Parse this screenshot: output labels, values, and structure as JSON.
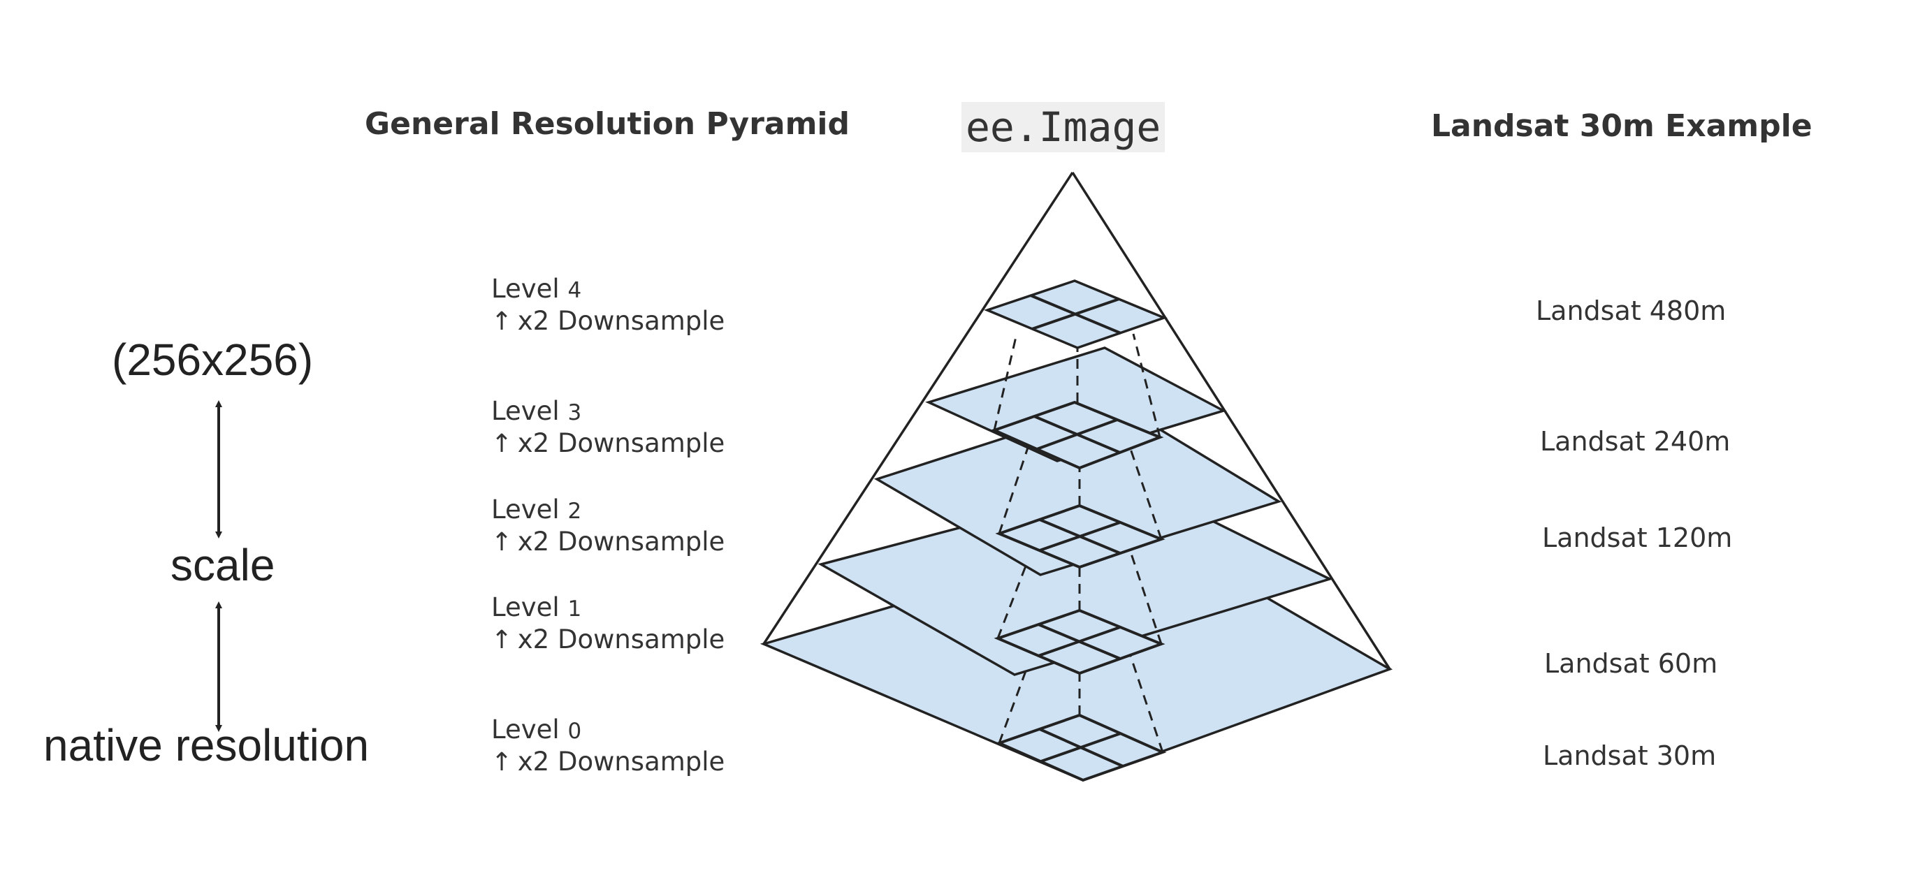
{
  "headings": {
    "left": "General Resolution Pyramid",
    "center": "ee.Image",
    "right": "Landsat 30m Example"
  },
  "left_axis": {
    "top": "(256x256)",
    "middle": "scale",
    "bottom": "native resolution"
  },
  "levels": [
    {
      "label": "Level",
      "number": "4",
      "arrow": "↑",
      "note": "x2 Downsample",
      "landsat": "Landsat 480m"
    },
    {
      "label": "Level",
      "number": "3",
      "arrow": "↑",
      "note": "x2 Downsample",
      "landsat": "Landsat 240m"
    },
    {
      "label": "Level",
      "number": "2",
      "arrow": "↑",
      "note": "x2 Downsample",
      "landsat": "Landsat 120m"
    },
    {
      "label": "Level",
      "number": "1",
      "arrow": "↑",
      "note": "x2 Downsample",
      "landsat": "Landsat 60m"
    },
    {
      "label": "Level",
      "number": "0",
      "arrow": "↑",
      "note": "x2 Downsample",
      "landsat": "Landsat 30m"
    }
  ],
  "colors": {
    "layer_fill": "#cfe2f3",
    "outline": "#222222",
    "text": "#333333",
    "code_background": "#efefef"
  }
}
